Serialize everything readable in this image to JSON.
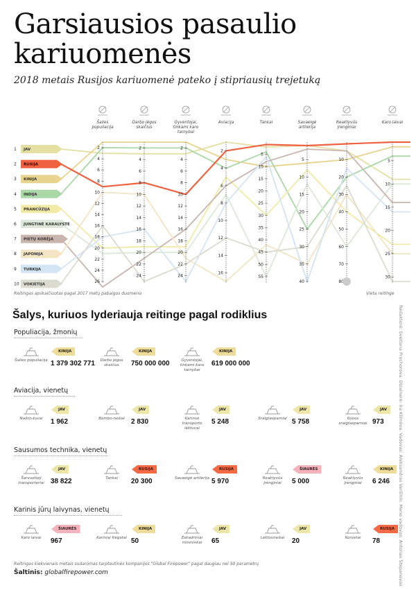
{
  "header": {
    "title": "Garsiausios pasaulio kariuomenės",
    "subtitle": "2018 metais Rusijos kariuomenė pateko į stipriausių trejetuką"
  },
  "chart_data": {
    "type": "line",
    "title": "",
    "note_left": "Reitingas apskaičiuotas pagal 2017 metų pabaigos duomenis",
    "note_right": "Vieta reitinge",
    "countries": [
      {
        "rank": 1,
        "name": "JAV",
        "color": "#e4e0a2"
      },
      {
        "rank": 2,
        "name": "RUSIJA",
        "color": "#f0623f"
      },
      {
        "rank": 3,
        "name": "KINIJA",
        "color": "#e8d48e"
      },
      {
        "rank": 4,
        "name": "INDIJA",
        "color": "#aad7a6"
      },
      {
        "rank": 5,
        "name": "PRANCŪZIJA",
        "color": "#f2eaa6"
      },
      {
        "rank": 6,
        "name": "JUNGTINĖ KARALYSTĖ",
        "color": "#dce9d8"
      },
      {
        "rank": 7,
        "name": "PIETŲ KORĖJA",
        "color": "#c9b5ae"
      },
      {
        "rank": 8,
        "name": "JAPONIJA",
        "color": "#f3e4c4"
      },
      {
        "rank": 9,
        "name": "TURKIJA",
        "color": "#d3e4f3"
      },
      {
        "rank": 10,
        "name": "VOKIETIJA",
        "color": "#dcdbcf"
      }
    ],
    "axes": [
      {
        "label": "Šalies populiacija",
        "icon": "people-icon",
        "ticks": [
          2,
          4,
          6,
          8,
          10,
          12,
          14,
          16,
          18,
          20,
          22,
          24,
          26
        ],
        "range": [
          1,
          26
        ],
        "values": [
          3,
          9,
          1,
          2,
          20,
          21,
          27,
          10,
          18,
          16
        ]
      },
      {
        "label": "Darbo jėgos skaičius",
        "icon": "workers-icon",
        "ticks": [
          2,
          4,
          6,
          8,
          10,
          12,
          14,
          16,
          18,
          20,
          22,
          24
        ],
        "range": [
          1,
          25
        ],
        "values": [
          3,
          8,
          1,
          2,
          19,
          20,
          21,
          10,
          16,
          25
        ]
      },
      {
        "label": "Gyventojai, tinkami karo tarnybai",
        "icon": "soldier-icon",
        "ticks": [
          2,
          4,
          6,
          8,
          10,
          12,
          14,
          16,
          18,
          20,
          22,
          24
        ],
        "range": [
          1,
          25
        ],
        "values": [
          3,
          10,
          1,
          2,
          19,
          20,
          16,
          21,
          25,
          22
        ]
      },
      {
        "label": "Aviacija",
        "icon": "plane-icon",
        "ticks": [
          2,
          4,
          6,
          8,
          10,
          12,
          14,
          16
        ],
        "range": [
          1,
          17
        ],
        "values": [
          1,
          2,
          3,
          4,
          5,
          7,
          6,
          17,
          8,
          12
        ]
      },
      {
        "label": "Tankai",
        "icon": "tank-icon",
        "ticks": [
          5,
          10,
          15,
          20,
          25,
          30,
          35,
          40,
          45,
          50,
          55
        ],
        "range": [
          0,
          57
        ],
        "values": [
          2,
          1,
          10,
          4,
          30,
          55,
          8,
          42,
          6,
          45
        ]
      },
      {
        "label": "Savaeigė artilerija",
        "icon": "artillery-icon",
        "ticks": [
          5,
          10,
          15,
          20,
          25,
          30,
          35,
          40
        ],
        "range": [
          0,
          40
        ],
        "values": [
          1,
          1,
          6,
          25,
          8,
          12,
          2,
          35,
          40,
          30
        ]
      },
      {
        "label": "Reaktyvūs įrenginiai",
        "icon": "rocket-launcher-icon",
        "ticks": [
          10,
          20,
          30,
          40,
          50,
          60,
          70,
          80
        ],
        "range": [
          0,
          80
        ],
        "values": [
          5,
          1,
          10,
          20,
          40,
          60,
          5,
          30,
          15,
          25
        ]
      },
      {
        "label": "Karo laivai",
        "icon": "warship-icon",
        "ticks": [
          5,
          10,
          15,
          20,
          25,
          30
        ],
        "range": [
          1,
          31
        ],
        "values": [
          9,
          1,
          2,
          4,
          23,
          10,
          14,
          25,
          16,
          31
        ]
      }
    ]
  },
  "leaders": {
    "title": "Šalys, kuriuos lyderiauja reitinge pagal rodiklius",
    "sections": [
      {
        "title": "Populiacija, žmonių",
        "items": [
          {
            "label": "Šalies populiacija",
            "country": "KINIJA",
            "value": "1 379 302 771",
            "color": "#eedc98",
            "icon": "people-icon"
          },
          {
            "label": "Darbo jėgos skaičius",
            "country": "KINIJA",
            "value": "750 000 000",
            "color": "#eedc98",
            "icon": "workers-icon"
          },
          {
            "label": "Gyventojai, tinkami karo tarnybai",
            "country": "KINIJA",
            "value": "619 000 000",
            "color": "#eedc98",
            "icon": "soldier-icon"
          }
        ]
      },
      {
        "title": "Aviacija, vienetų",
        "items": [
          {
            "label": "Naikin-tuvai",
            "country": "JAV",
            "value": "1 962",
            "color": "#ece6a8",
            "icon": "fighter-jet-icon"
          },
          {
            "label": "Bombo-nešiai",
            "country": "JAV",
            "value": "2 830",
            "color": "#ece6a8",
            "icon": "bomber-icon"
          },
          {
            "label": "Kariniai transporto lėktuvai",
            "country": "JAV",
            "value": "5 248",
            "color": "#ece6a8",
            "icon": "transport-plane-icon"
          },
          {
            "label": "Sraigtasparniai",
            "country": "JAV",
            "value": "5 758",
            "color": "#ece6a8",
            "icon": "helicopter-icon"
          },
          {
            "label": "Kovos sraigtasparniai",
            "country": "JAV",
            "value": "973",
            "color": "#ece6a8",
            "icon": "attack-helicopter-icon"
          }
        ]
      },
      {
        "title": "Sausumos technika, vienetų",
        "items": [
          {
            "label": "Šarvuotieji transporteriai",
            "country": "JAV",
            "value": "38 822",
            "color": "#ece6a8",
            "icon": "armored-carrier-icon"
          },
          {
            "label": "Tankai",
            "country": "RUSIJA",
            "value": "20 300",
            "color": "#f36a45",
            "icon": "tank-icon"
          },
          {
            "label": "Savaeigė artilerija",
            "country": "RUSIJA",
            "value": "5 970",
            "color": "#f36a45",
            "icon": "artillery-icon"
          },
          {
            "label": "Reaktyvūs įrenginiai",
            "country": "ŠIAURĖS KORĖJA",
            "value": "5 000",
            "color": "#f5b2ba",
            "icon": "rocket-launcher-icon"
          },
          {
            "label": "Reaktyvūs įrenginiai",
            "country": "KINIJA",
            "value": "6 246",
            "color": "#eedc98",
            "icon": "rocket-launcher-icon"
          }
        ]
      },
      {
        "title": "Karinis jūrų laivynas, vienetų",
        "items": [
          {
            "label": "Karo laivai",
            "country": "ŠIAURĖS KORĖJA",
            "value": "967",
            "color": "#f5b2ba",
            "icon": "warship-icon"
          },
          {
            "label": "Kariniai fregatai",
            "country": "KINIJA",
            "value": "50",
            "color": "#eedc98",
            "icon": "frigate-icon"
          },
          {
            "label": "Eskadriniai mininінkai",
            "country": "JAV",
            "value": "65",
            "color": "#ece6a8",
            "icon": "destroyer-icon"
          },
          {
            "label": "Lėktuvnešiai",
            "country": "JAV",
            "value": "20",
            "color": "#ece6a8",
            "icon": "carrier-icon"
          },
          {
            "label": "Korvetai",
            "country": "RUSIJA",
            "value": "78",
            "color": "#f36a45",
            "icon": "corvette-icon"
          }
        ]
      }
    ]
  },
  "footer": {
    "note": "Reitingas kiekvienais metais sudaromas tarptautinės kompanijos \"Global Firepower\" pagal daugiau nei 50 parametrų",
    "source_label": "Šaltinis:",
    "source_value": "globalfirepower.com",
    "credits": "Redaktorė: Svetlana Prochorova. Dizainerė: Ira Klimova. Vadovas: Aleksandras Veršinin. Meno vadovas: Antonas Stepanovas"
  }
}
